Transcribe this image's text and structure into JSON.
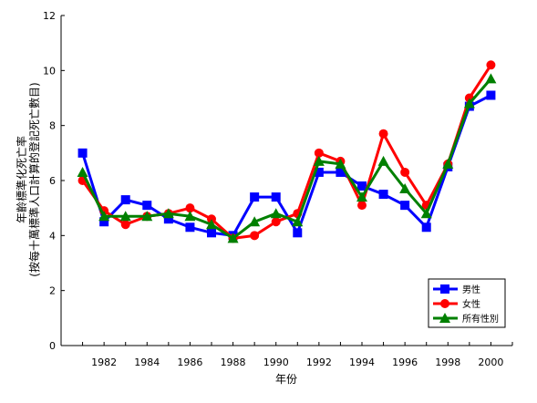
{
  "chart_data": {
    "type": "line",
    "xlabel": "年份",
    "ylabel_lines": [
      "年齡標準化死亡率",
      "(按每十萬標準人口計算的登記死亡數目)"
    ],
    "ylim": [
      0,
      12
    ],
    "yticks": [
      0,
      2,
      4,
      6,
      8,
      10,
      12
    ],
    "xlim": [
      1980,
      2001
    ],
    "xticks": [
      1982,
      1984,
      1986,
      1988,
      1990,
      1992,
      1994,
      1996,
      1998,
      2000
    ],
    "grid": false,
    "legend_position": "bottom-right",
    "x": [
      1981,
      1982,
      1983,
      1984,
      1985,
      1986,
      1987,
      1988,
      1989,
      1990,
      1991,
      1992,
      1993,
      1994,
      1995,
      1996,
      1997,
      1998,
      1999,
      2000
    ],
    "series": [
      {
        "name": "男性",
        "color": "#0000ff",
        "marker": "square",
        "values": [
          7.0,
          4.5,
          5.3,
          5.1,
          4.6,
          4.3,
          4.1,
          4.0,
          5.4,
          5.4,
          4.1,
          6.3,
          6.3,
          5.8,
          5.5,
          5.1,
          4.3,
          6.5,
          8.7,
          9.1
        ]
      },
      {
        "name": "女性",
        "color": "#ff0000",
        "marker": "circle",
        "values": [
          6.0,
          4.9,
          4.4,
          4.7,
          4.8,
          5.0,
          4.6,
          3.9,
          4.0,
          4.5,
          4.8,
          7.0,
          6.7,
          5.1,
          7.7,
          6.3,
          5.1,
          6.6,
          9.0,
          10.2
        ]
      },
      {
        "name": "所有性別",
        "color": "#008000",
        "marker": "triangle",
        "values": [
          6.3,
          4.7,
          4.7,
          4.7,
          4.8,
          4.7,
          4.4,
          3.9,
          4.5,
          4.8,
          4.5,
          6.7,
          6.6,
          5.4,
          6.7,
          5.7,
          4.8,
          6.6,
          8.8,
          9.7
        ]
      }
    ]
  }
}
